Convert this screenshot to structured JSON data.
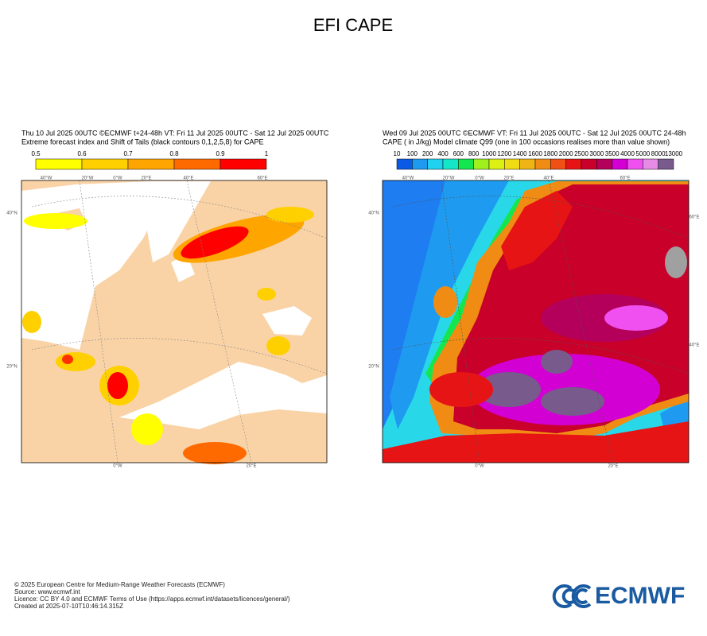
{
  "title": "EFI CAPE",
  "panels": [
    {
      "header": [
        "Thu 10 Jul 2025 00UTC ©ECMWF t+24-48h  VT: Fri 11 Jul 2025 00UTC - Sat 12 Jul 2025 00UTC",
        "Extreme forecast index and Shift of Tails (black contours 0,1,2,5,8) for CAPE"
      ],
      "levels": [
        0.5,
        0.6,
        0.7,
        0.8,
        0.9,
        1
      ],
      "colors": [
        "#ffff00",
        "#ffd000",
        "#ffa500",
        "#ff6a00",
        "#ff0000"
      ],
      "grid_labels": [
        "40°W",
        "20°W",
        "0°W",
        "20°E",
        "40°E",
        "60°E",
        "40°N",
        "20°N",
        "0°W",
        "20°E"
      ]
    },
    {
      "header": [
        "Wed 09 Jul 2025 00UTC ©ECMWF VT: Fri 11 Jul 2025 00UTC - Sat 12 Jul 2025 00UTC   24-48h",
        "CAPE ( in J/kg)  Model climate Q99 (one in 100 occasions realises more than value shown)"
      ],
      "levels": [
        10,
        100,
        200,
        400,
        600,
        800,
        1000,
        1200,
        1400,
        1600,
        1800,
        2000,
        2500,
        3000,
        3500,
        4000,
        5000,
        8000,
        13000
      ],
      "colors": [
        "#0a5ae6",
        "#1e9bf0",
        "#1ed2f0",
        "#14e6c8",
        "#14e650",
        "#a0f01e",
        "#dcf014",
        "#f0dc14",
        "#f0b414",
        "#f08c14",
        "#f05014",
        "#e61414",
        "#c8002a",
        "#b4005a",
        "#d200d2",
        "#f050f0",
        "#e68ce6",
        "#785a8c",
        "#a0a0a0",
        "#3c3c3c"
      ],
      "grid_labels": [
        "40°W",
        "20°W",
        "0°W",
        "20°E",
        "40°E",
        "60°E",
        "60°E",
        "40°E",
        "40°N",
        "20°N",
        "0°W",
        "20°E"
      ]
    }
  ],
  "footer": [
    "© 2025 European Centre for Medium-Range Weather Forecasts (ECMWF)",
    "Source: www.ecmwf.int",
    "Licence: CC BY 4.0 and ECMWF Terms of Use (https://apps.ecmwf.int/datasets/licences/general/)",
    "Created at 2025-07-10T10:46:14.315Z"
  ],
  "logo": "ECMWF"
}
